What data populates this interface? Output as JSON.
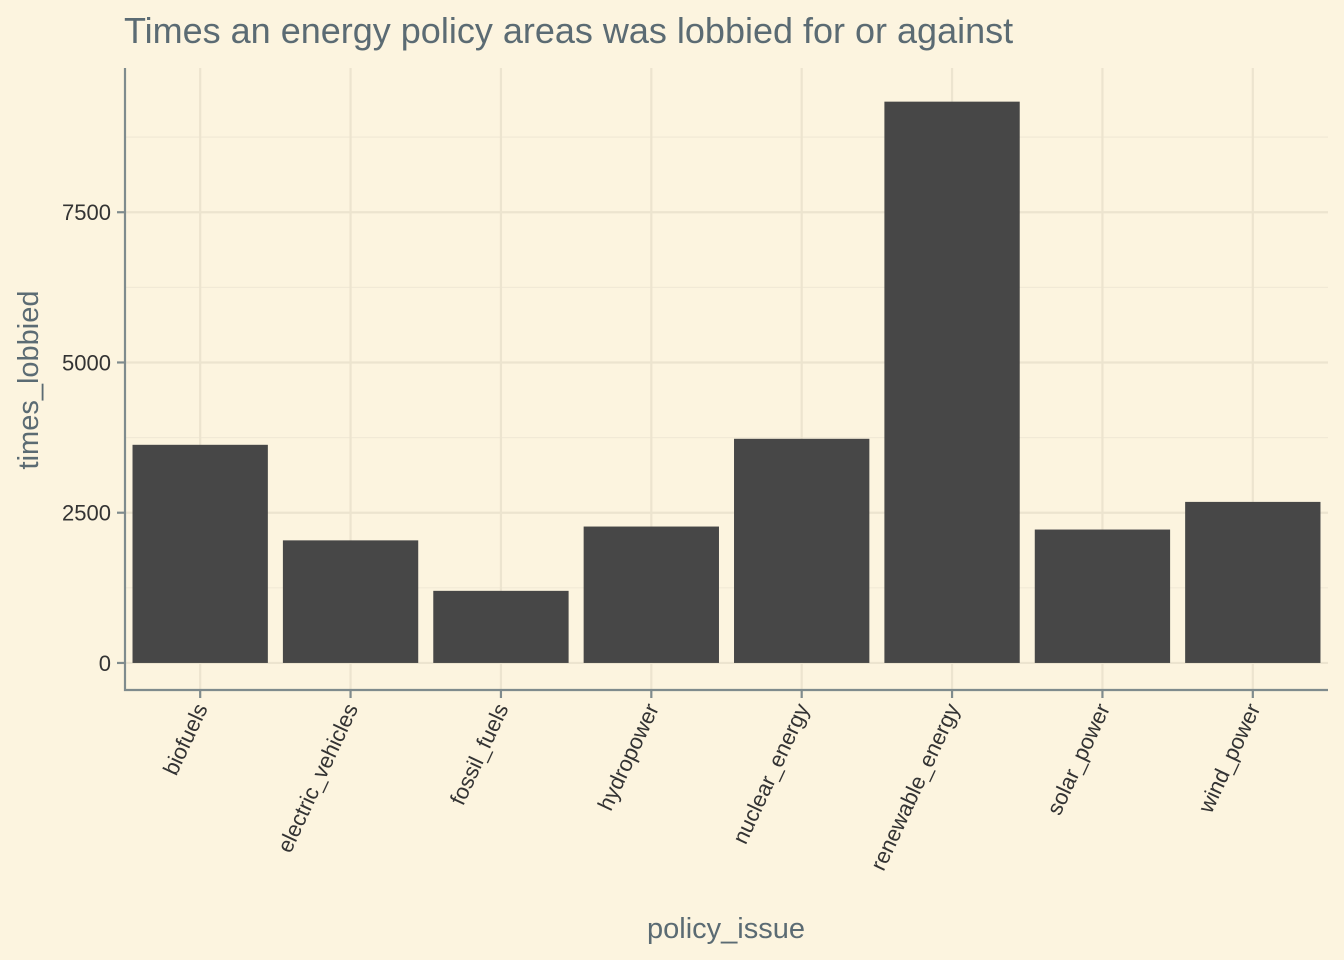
{
  "chart_data": {
    "type": "bar",
    "title": "Times an energy policy areas was lobbied for or against",
    "xlabel": "policy_issue",
    "ylabel": "times_lobbied",
    "categories": [
      "biofuels",
      "electric_vehicles",
      "fossil_fuels",
      "hydropower",
      "nuclear_energy",
      "renewable_energy",
      "solar_power",
      "wind_power"
    ],
    "values": [
      3630,
      2040,
      1200,
      2270,
      3730,
      9340,
      2220,
      2680
    ],
    "ylim": [
      -450,
      9900
    ],
    "yticks": [
      0,
      2500,
      5000,
      7500
    ],
    "ytick_labels": [
      "0",
      "2500",
      "5000",
      "7500"
    ],
    "grid": true,
    "legend": "none",
    "colors": {
      "background": "#fcf4df",
      "bar": "#474747",
      "grid": "#ece4cf",
      "axis": "#7f8b8d",
      "title": "#5b6b73"
    }
  }
}
